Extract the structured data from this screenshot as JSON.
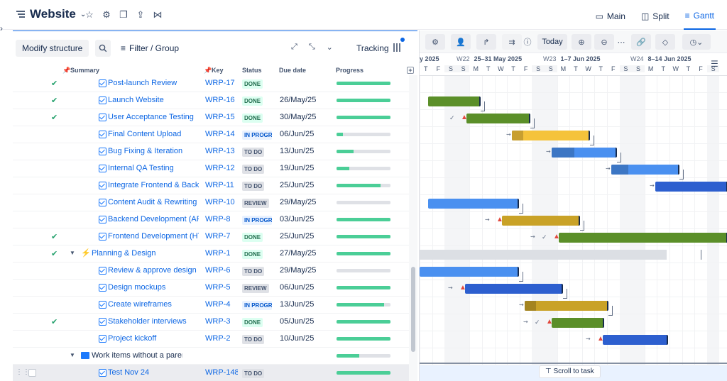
{
  "header": {
    "title": "Website",
    "views": [
      {
        "label": "Main",
        "icon": "main-view-icon"
      },
      {
        "label": "Split",
        "icon": "split-view-icon"
      },
      {
        "label": "Gantt",
        "icon": "gantt-view-icon",
        "active": true
      }
    ]
  },
  "toolbar": {
    "modify_label": "Modify structure",
    "filter_label": "Filter / Group",
    "tracking_label": "Tracking"
  },
  "columns": {
    "summary": "Summary",
    "key": "Key",
    "status": "Status",
    "due": "Due date",
    "progress": "Progress"
  },
  "rows": [
    {
      "summary": "Post-launch Review",
      "key": "WRP-17",
      "status": "DONE",
      "due": "",
      "progress": 1.0,
      "done_check": true,
      "type": "task"
    },
    {
      "summary": "Launch Website",
      "key": "WRP-16",
      "status": "DONE",
      "due": "26/May/25",
      "progress": 1.0,
      "done_check": true,
      "type": "task"
    },
    {
      "summary": "User Acceptance Testing",
      "key": "WRP-15",
      "status": "DONE",
      "due": "30/May/25",
      "progress": 1.0,
      "done_check": true,
      "type": "task"
    },
    {
      "summary": "Final Content Upload",
      "key": "WRP-14",
      "status": "IN PROGRESS",
      "due": "06/Jun/25",
      "progress": 0.12,
      "done_check": false,
      "type": "task"
    },
    {
      "summary": "Bug Fixing & Iteration",
      "key": "WRP-13",
      "status": "TO DO",
      "due": "13/Jun/25",
      "progress": 0.32,
      "done_check": false,
      "type": "task"
    },
    {
      "summary": "Internal QA Testing",
      "key": "WRP-12",
      "status": "TO DO",
      "due": "19/Jun/25",
      "progress": 0.24,
      "done_check": false,
      "type": "task"
    },
    {
      "summary": "Integrate Frontend & Backend",
      "key": "WRP-11",
      "status": "TO DO",
      "due": "25/Jun/25",
      "progress": 0.82,
      "done_check": false,
      "type": "task"
    },
    {
      "summary": "Content Audit & Rewriting",
      "key": "WRP-10",
      "status": "REVIEW",
      "due": "29/May/25",
      "progress": 0.0,
      "done_check": false,
      "type": "task"
    },
    {
      "summary": "Backend Development (API)",
      "key": "WRP-8",
      "status": "IN PROGRESS",
      "due": "03/Jun/25",
      "progress": 1.0,
      "done_check": false,
      "type": "task"
    },
    {
      "summary": "Frontend Development (HTML)",
      "key": "WRP-7",
      "status": "DONE",
      "due": "25/Jun/25",
      "progress": 1.0,
      "done_check": true,
      "type": "task"
    },
    {
      "summary": "Planning & Design",
      "key": "WRP-1",
      "status": "DONE",
      "due": "27/May/25",
      "progress": 1.0,
      "done_check": true,
      "type": "epic"
    },
    {
      "summary": "Review & approve design",
      "key": "WRP-6",
      "status": "TO DO",
      "due": "29/May/25",
      "progress": 0.0,
      "done_check": false,
      "type": "task"
    },
    {
      "summary": "Design mockups",
      "key": "WRP-5",
      "status": "REVIEW",
      "due": "06/Jun/25",
      "progress": 1.0,
      "done_check": false,
      "type": "task"
    },
    {
      "summary": "Create wireframes",
      "key": "WRP-4",
      "status": "IN PROGRESS",
      "due": "13/Jun/25",
      "progress": 0.88,
      "done_check": false,
      "type": "task"
    },
    {
      "summary": "Stakeholder interviews",
      "key": "WRP-3",
      "status": "DONE",
      "due": "05/Jun/25",
      "progress": 1.0,
      "done_check": true,
      "type": "task"
    },
    {
      "summary": "Project kickoff",
      "key": "WRP-2",
      "status": "TO DO",
      "due": "10/Jun/25",
      "progress": 1.0,
      "done_check": false,
      "type": "task"
    },
    {
      "summary": "Work items without a parent",
      "key": "",
      "status": "",
      "due": "",
      "progress": 0.42,
      "done_check": false,
      "type": "folder"
    },
    {
      "summary": "Test Nov 24",
      "key": "WRP-148",
      "status": "TO DO",
      "due": "",
      "progress": 1.0,
      "done_check": false,
      "type": "task",
      "selected": true
    }
  ],
  "gantt": {
    "today_label": "Today",
    "scroll_label": "Scroll to task",
    "weeks": [
      {
        "w": "",
        "range": "y 2025"
      },
      {
        "w": "W22",
        "range": "25–31 May 2025"
      },
      {
        "w": "W23",
        "range": "1–7 Jun 2025"
      },
      {
        "w": "W24",
        "range": "8–14 Jun 2025"
      }
    ],
    "days": [
      "T",
      "F",
      "S",
      "S",
      "M",
      "T",
      "W",
      "T",
      "F",
      "S",
      "S",
      "M",
      "T",
      "W",
      "T",
      "F",
      "S",
      "S",
      "M",
      "T",
      "W",
      "T",
      "F",
      "S"
    ],
    "colors": {
      "done": "#5b8f29",
      "todo": "#2d5fcf",
      "progress": "#f5c33b",
      "review": "#c9a227",
      "light": "#4a90f0"
    }
  }
}
